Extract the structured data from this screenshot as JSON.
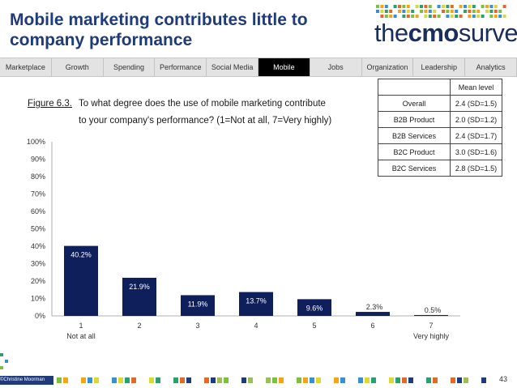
{
  "slide": {
    "title": "Mobile marketing contributes little to company performance",
    "page_number": "43",
    "copyright": "©Christine Moorman"
  },
  "logo": {
    "prefix": "the",
    "brand": "cmo",
    "suffix": "survey"
  },
  "nav": {
    "items": [
      "Marketplace",
      "Growth",
      "Spending",
      "Performance",
      "Social Media",
      "Mobile",
      "Jobs",
      "Organization",
      "Leadership",
      "Analytics"
    ],
    "active": "Mobile"
  },
  "figure": {
    "label": "Figure 6.3.",
    "question_line1": "To what degree does the use of mobile marketing contribute",
    "question_line2": "to your company's performance? (1=Not at all, 7=Very highly)"
  },
  "mean_table": {
    "header": "Mean level",
    "rows": [
      {
        "segment": "Overall",
        "value": "2.4 (SD=1.5)"
      },
      {
        "segment": "B2B Product",
        "value": "2.0 (SD=1.2)"
      },
      {
        "segment": "B2B Services",
        "value": "2.4 (SD=1.7)"
      },
      {
        "segment": "B2C Product",
        "value": "3.0 (SD=1.6)"
      },
      {
        "segment": "B2C Services",
        "value": "2.8 (SD=1.5)"
      }
    ]
  },
  "chart_data": {
    "type": "bar",
    "categories": [
      "1",
      "2",
      "3",
      "4",
      "5",
      "6",
      "7"
    ],
    "category_sublabels": [
      "Not at all",
      "",
      "",
      "",
      "",
      "",
      "Very highly"
    ],
    "values": [
      40.2,
      21.9,
      11.9,
      13.7,
      9.6,
      2.3,
      0.5
    ],
    "value_labels": [
      "40.2%",
      "21.9%",
      "11.9%",
      "13.7%",
      "9.6%",
      "2.3%",
      "0.5%"
    ],
    "y_ticks": [
      "0%",
      "10%",
      "20%",
      "30%",
      "40%",
      "50%",
      "60%",
      "70%",
      "80%",
      "90%",
      "100%"
    ],
    "ylim": [
      0,
      100
    ],
    "bar_color": "#0e1f5b",
    "title": "",
    "xlabel": "",
    "ylabel": "",
    "grid": false
  }
}
